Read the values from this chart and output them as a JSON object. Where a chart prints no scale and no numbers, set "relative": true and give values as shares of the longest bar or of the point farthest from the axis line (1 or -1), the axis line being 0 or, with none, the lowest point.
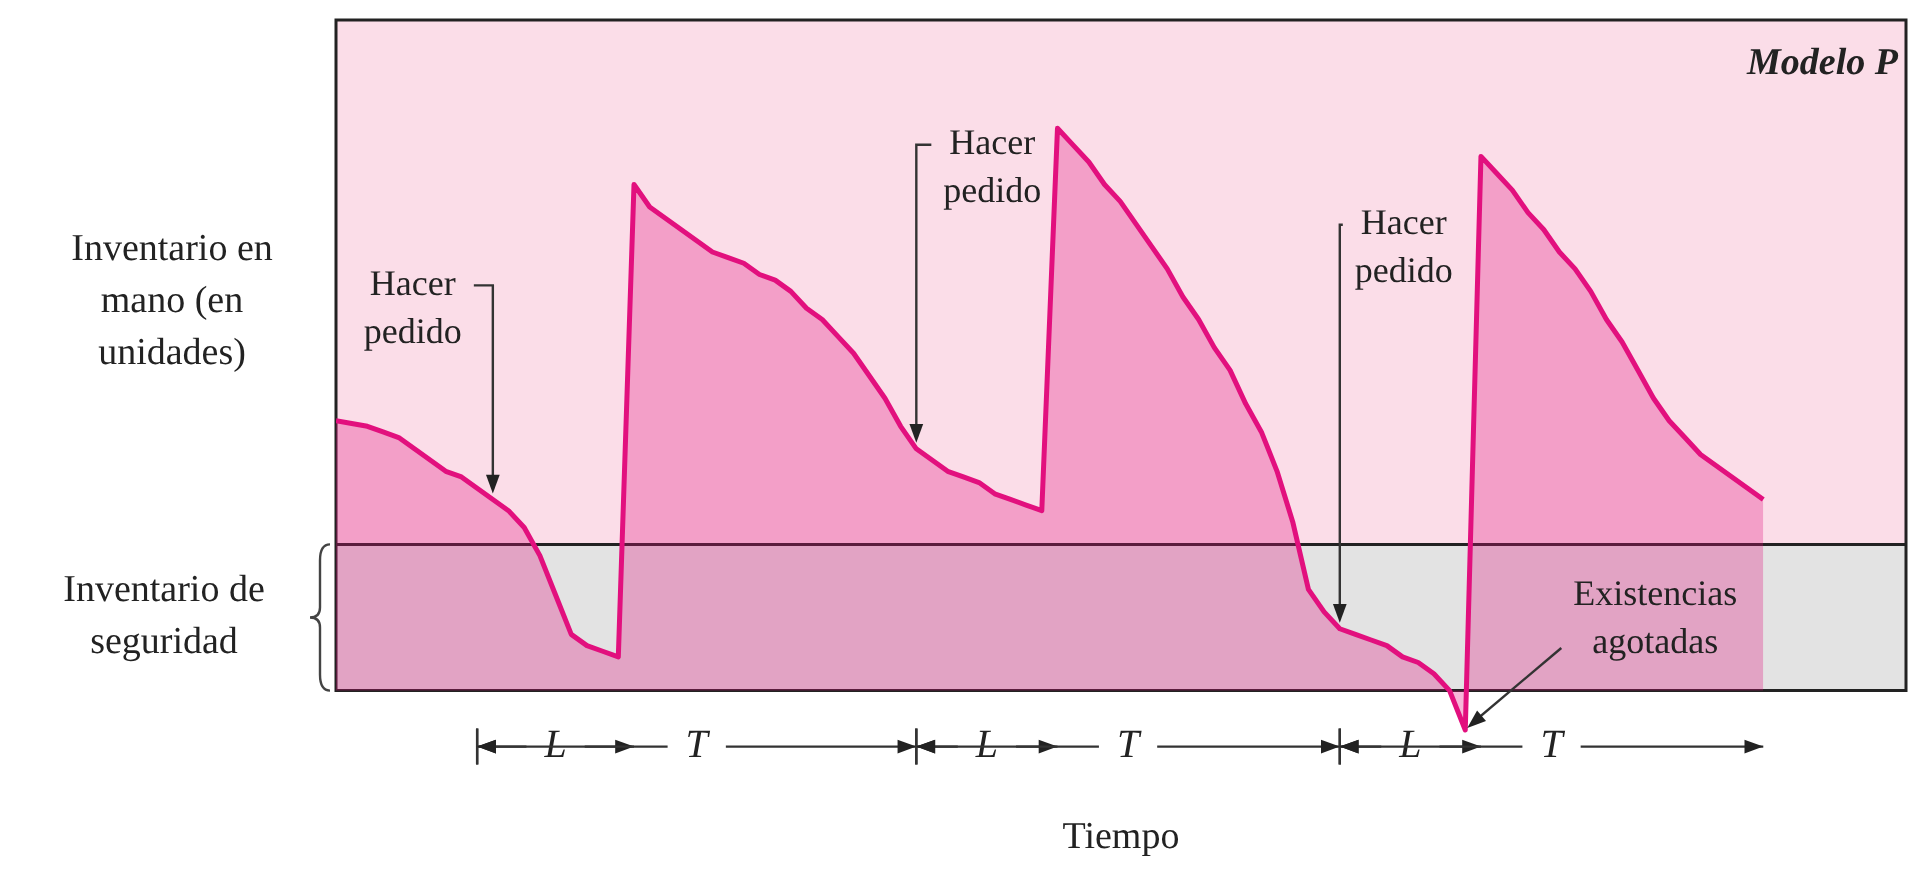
{
  "chart_data": {
    "type": "area",
    "title": "Modelo P",
    "ylabel": "Inventario en mano (en unidades)",
    "xlabel": "Tiempo",
    "relative": true,
    "tick_labels": false,
    "categories": [
      null,
      null,
      null,
      null,
      null,
      null,
      null,
      null,
      null,
      null,
      null,
      null,
      null,
      null,
      null,
      null,
      null,
      null,
      null,
      null,
      null,
      null,
      null,
      null,
      null,
      null,
      null,
      null,
      null,
      null,
      null,
      null,
      null,
      null,
      null,
      null,
      null,
      null,
      null,
      null,
      null,
      null,
      null,
      null,
      null,
      null,
      null,
      null,
      null,
      null,
      null,
      null,
      null,
      null,
      null,
      null,
      null,
      null,
      null,
      null,
      null,
      null,
      null,
      null,
      null,
      null,
      null,
      null,
      null,
      null,
      null,
      null,
      null,
      null,
      null,
      null,
      null,
      null,
      null,
      null,
      null,
      null,
      null,
      null,
      null,
      null,
      null,
      null,
      null,
      null,
      null,
      null
    ],
    "series": [
      {
        "color": "#e2107e",
        "values": [
          0.48,
          0.475,
          0.47,
          0.46,
          0.45,
          0.43,
          0.41,
          0.39,
          0.38,
          0.36,
          0.34,
          0.32,
          0.29,
          0.24,
          0.17,
          0.1,
          0.08,
          0.07,
          0.06,
          0.9,
          0.86,
          0.84,
          0.82,
          0.8,
          0.78,
          0.77,
          0.76,
          0.74,
          0.73,
          0.71,
          0.68,
          0.66,
          0.63,
          0.6,
          0.56,
          0.52,
          0.47,
          0.43,
          0.41,
          0.39,
          0.38,
          0.37,
          0.35,
          0.34,
          0.33,
          0.32,
          1.0,
          0.97,
          0.94,
          0.9,
          0.87,
          0.83,
          0.79,
          0.75,
          0.7,
          0.66,
          0.61,
          0.57,
          0.51,
          0.46,
          0.39,
          0.3,
          0.18,
          0.14,
          0.11,
          0.1,
          0.09,
          0.08,
          0.06,
          0.05,
          0.03,
          0.0,
          -0.07,
          0.95,
          0.92,
          0.89,
          0.85,
          0.82,
          0.78,
          0.75,
          0.71,
          0.66,
          0.62,
          0.57,
          0.52,
          0.48,
          0.45,
          0.42,
          0.4,
          0.38,
          0.36,
          0.34
        ]
      }
    ],
    "bands": [
      {
        "axis": "y",
        "from": 0,
        "to": 0.26,
        "label": "Inventario de seguridad",
        "color": "#e3e3e3"
      }
    ],
    "ref_lines": [
      {
        "axis": "y",
        "value": 0.26,
        "color": "#222222"
      }
    ],
    "annotations": [
      "Hacer pedido",
      "Hacer pedido",
      "Hacer pedido",
      "Existencias agotadas",
      "L",
      "T",
      "L",
      "T",
      "L",
      "T"
    ]
  }
}
